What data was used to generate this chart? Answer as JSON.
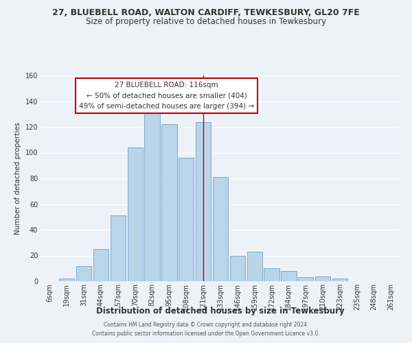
{
  "title_line1": "27, BLUEBELL ROAD, WALTON CARDIFF, TEWKESBURY, GL20 7FE",
  "title_line2": "Size of property relative to detached houses in Tewkesbury",
  "xlabel": "Distribution of detached houses by size in Tewkesbury",
  "ylabel": "Number of detached properties",
  "bar_labels": [
    "6sqm",
    "19sqm",
    "31sqm",
    "44sqm",
    "57sqm",
    "70sqm",
    "82sqm",
    "95sqm",
    "108sqm",
    "121sqm",
    "133sqm",
    "146sqm",
    "159sqm",
    "172sqm",
    "184sqm",
    "197sqm",
    "210sqm",
    "223sqm",
    "235sqm",
    "248sqm",
    "261sqm"
  ],
  "bar_values": [
    0,
    2,
    12,
    25,
    51,
    104,
    131,
    122,
    96,
    124,
    81,
    20,
    23,
    10,
    8,
    3,
    4,
    2,
    0,
    0,
    0
  ],
  "bar_color": "#bad4ea",
  "bar_edge_color": "#7fa8cc",
  "marker_line_index": 9,
  "marker_line_color": "#c00000",
  "annotation_title": "27 BLUEBELL ROAD: 116sqm",
  "annotation_line1": "← 50% of detached houses are smaller (404)",
  "annotation_line2": "49% of semi-detached houses are larger (394) →",
  "annotation_box_facecolor": "#ffffff",
  "annotation_box_edgecolor": "#c00000",
  "footer_line1": "Contains HM Land Registry data © Crown copyright and database right 2024.",
  "footer_line2": "Contains public sector information licensed under the Open Government Licence v3.0.",
  "ylim": [
    0,
    160
  ],
  "yticks": [
    0,
    20,
    40,
    60,
    80,
    100,
    120,
    140,
    160
  ],
  "background_color": "#edf2f9",
  "grid_color": "#ffffff",
  "title_fontsize": 9,
  "subtitle_fontsize": 8.5,
  "xlabel_fontsize": 8.5,
  "ylabel_fontsize": 7.5,
  "tick_fontsize": 7,
  "annotation_fontsize": 7.5,
  "footer_fontsize": 5.5
}
